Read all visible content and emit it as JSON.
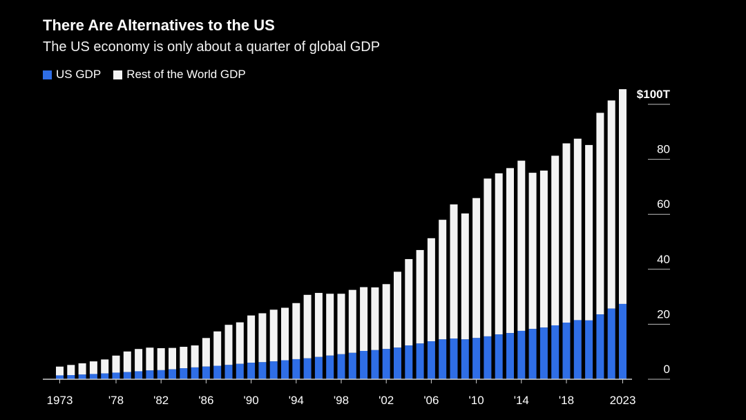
{
  "chart_data": {
    "type": "bar",
    "stacked": true,
    "title": "There Are Alternatives to the US",
    "subtitle": "The US economy is only about a quarter of global GDP",
    "x": [
      1973,
      1974,
      1975,
      1976,
      1977,
      1978,
      1979,
      1980,
      1981,
      1982,
      1983,
      1984,
      1985,
      1986,
      1987,
      1988,
      1989,
      1990,
      1991,
      1992,
      1993,
      1994,
      1995,
      1996,
      1997,
      1998,
      1999,
      2000,
      2001,
      2002,
      2003,
      2004,
      2005,
      2006,
      2007,
      2008,
      2009,
      2010,
      2011,
      2012,
      2013,
      2014,
      2015,
      2016,
      2017,
      2018,
      2019,
      2020,
      2021,
      2022,
      2023
    ],
    "series": [
      {
        "name": "US GDP",
        "color": "#2f6ee6",
        "values": [
          1.4,
          1.5,
          1.7,
          1.9,
          2.1,
          2.4,
          2.6,
          2.9,
          3.2,
          3.3,
          3.6,
          4.0,
          4.3,
          4.6,
          4.9,
          5.2,
          5.6,
          6.0,
          6.2,
          6.5,
          6.9,
          7.3,
          7.6,
          8.1,
          8.6,
          9.1,
          9.6,
          10.3,
          10.6,
          11.0,
          11.5,
          12.3,
          13.0,
          13.8,
          14.5,
          14.8,
          14.5,
          15.0,
          15.6,
          16.3,
          16.8,
          17.6,
          18.3,
          18.8,
          19.6,
          20.6,
          21.5,
          21.4,
          23.6,
          25.7,
          27.4
        ]
      },
      {
        "name": "Rest of the World GDP",
        "color": "#f3f3f3",
        "values": [
          3.2,
          3.7,
          4.1,
          4.6,
          5.1,
          6.2,
          7.5,
          8.1,
          8.3,
          8.0,
          7.8,
          7.8,
          8.0,
          10.4,
          12.5,
          14.6,
          15.1,
          17.2,
          17.8,
          18.8,
          19.1,
          20.4,
          23.1,
          23.3,
          22.5,
          22.0,
          22.9,
          23.2,
          22.8,
          23.6,
          27.6,
          31.4,
          34.0,
          37.5,
          43.5,
          48.8,
          45.8,
          50.9,
          57.4,
          58.6,
          60.0,
          61.9,
          56.8,
          57.1,
          61.7,
          65.2,
          66.0,
          63.8,
          73.3,
          75.7,
          78.1
        ]
      }
    ],
    "tick_labels_x": [
      "1973",
      "'78",
      "'82",
      "'86",
      "'90",
      "'94",
      "'98",
      "'02",
      "'06",
      "'10",
      "'14",
      "'18",
      "2023"
    ],
    "tick_years_x": [
      1973,
      1978,
      1982,
      1986,
      1990,
      1994,
      1998,
      2002,
      2006,
      2010,
      2014,
      2018,
      2023
    ],
    "tick_labels_y": [
      "0",
      "20",
      "40",
      "60",
      "80",
      "$100T"
    ],
    "tick_values_y": [
      0,
      20,
      40,
      60,
      80,
      100
    ],
    "ylim": [
      0,
      105
    ],
    "y_axis_side": "right",
    "legend_position": "top-left",
    "grid": false
  }
}
